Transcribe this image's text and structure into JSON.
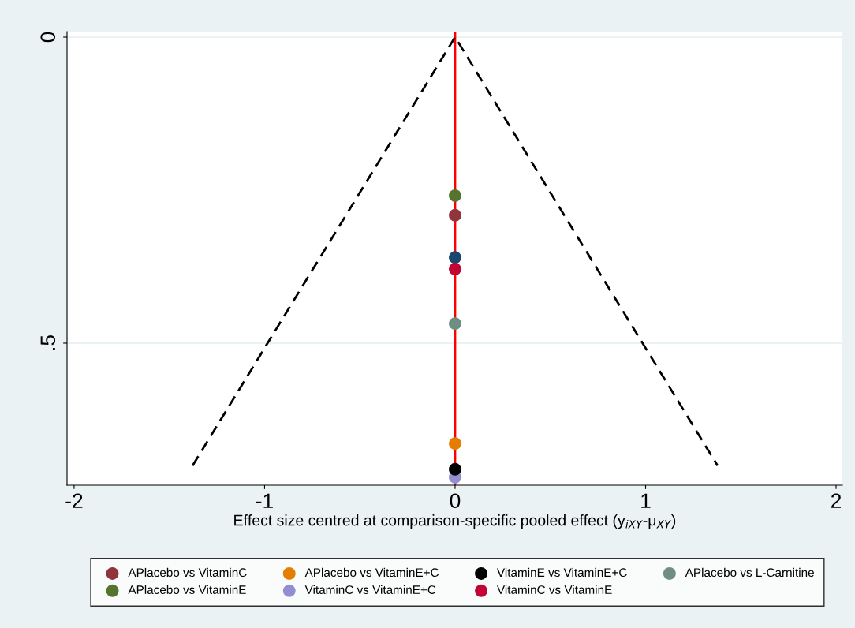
{
  "chart_data": {
    "type": "scatter",
    "xlabel": "Effect size centred at comparison-specific pooled effect (y$_{iXY}$-μ$_{XY}$)",
    "xlim": [
      -2.037,
      2.033
    ],
    "xticks": [
      -2,
      -1,
      0,
      1,
      2
    ],
    "ylim": [
      0.732,
      -0.009
    ],
    "yticks": [
      0,
      {
        "value": 0.5,
        "label": ".5"
      }
    ],
    "grid": "y",
    "legend": "bottom",
    "marker": "circle",
    "ref_lines": [
      {
        "axis": "x",
        "value": 0,
        "color": "#ff0000"
      }
    ],
    "series": [
      {
        "type": "line",
        "color": "#000000",
        "line_style": "dashed",
        "marker": "none",
        "x": [
          -1.378,
          0,
          1.378
        ],
        "values": [
          0.7,
          0,
          0.7
        ]
      },
      {
        "color": "#1a476f",
        "x": [
          0
        ],
        "values": [
          0.36
        ]
      },
      {
        "name": "APlacebo vs VitaminC",
        "color": "#90353b",
        "x": [
          0
        ],
        "values": [
          0.291
        ]
      },
      {
        "name": "APlacebo vs VitaminE",
        "color": "#55752f",
        "x": [
          0
        ],
        "values": [
          0.259
        ]
      },
      {
        "name": "APlacebo vs VitaminE+C",
        "color": "#e37e00",
        "x": [
          0
        ],
        "values": [
          0.664
        ]
      },
      {
        "name": "VitaminC vs VitaminE+C",
        "color": "#938dd2",
        "x": [
          0
        ],
        "values": [
          0.719
        ]
      },
      {
        "name": "VitaminE vs VitaminE+C",
        "color": "#000000",
        "x": [
          0
        ],
        "values": [
          0.706
        ]
      },
      {
        "name": "VitaminC vs VitaminE",
        "color": "#c10534",
        "x": [
          0
        ],
        "values": [
          0.379
        ]
      },
      {
        "name": "APlacebo vs L-Carnitine",
        "color": "#6e8e84",
        "x": [
          0
        ],
        "values": [
          0.468
        ]
      }
    ]
  }
}
